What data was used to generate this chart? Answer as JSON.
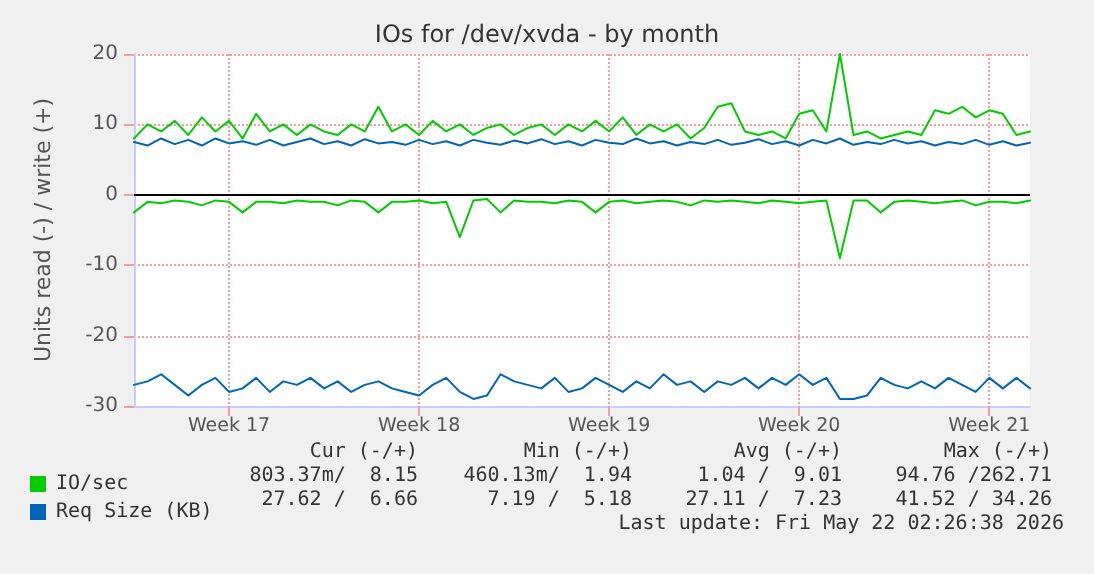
{
  "chart_data": {
    "type": "line",
    "title": "IOs for /dev/xvda - by month",
    "ylabel": "Units read (-) / write (+)",
    "categories": [
      null,
      null,
      null,
      null,
      null,
      null,
      null,
      "Week 17",
      null,
      null,
      null,
      null,
      null,
      null,
      null,
      null,
      null,
      null,
      null,
      null,
      null,
      "Week 18",
      null,
      null,
      null,
      null,
      null,
      null,
      null,
      null,
      null,
      null,
      null,
      null,
      null,
      "Week 19",
      null,
      null,
      null,
      null,
      null,
      null,
      null,
      null,
      null,
      null,
      null,
      null,
      null,
      "Week 20",
      null,
      null,
      null,
      null,
      null,
      null,
      null,
      null,
      null,
      null,
      null,
      null,
      null,
      "Week 21",
      null,
      null,
      null
    ],
    "ylim": [
      -30,
      20
    ],
    "yticks": [
      -30,
      -20,
      -10,
      0,
      10,
      20
    ],
    "grid": true,
    "legend": "bottom left",
    "marker": "none",
    "line_style": "solid",
    "ref_lines": [
      {
        "axis": "y",
        "value": 0,
        "color": "#000000"
      }
    ],
    "series": [
      {
        "name": "IO/sec",
        "color": "#00cc00",
        "values": [
          8,
          10,
          9,
          10.5,
          8.5,
          11,
          9,
          10.5,
          8,
          11.5,
          9,
          10,
          8.5,
          10,
          9,
          8.5,
          10,
          9,
          12.5,
          9,
          10,
          8.5,
          10.5,
          9,
          10,
          8.5,
          9.5,
          10,
          8.5,
          9.5,
          10,
          8.5,
          10,
          9,
          10.5,
          9,
          11,
          8.5,
          10,
          9,
          10,
          8,
          9.5,
          12.5,
          13,
          9,
          8.5,
          9,
          8,
          11.5,
          12,
          9,
          20,
          8.5,
          9,
          8,
          8.5,
          9,
          8.5,
          12,
          11.5,
          12.5,
          11,
          12,
          11.5,
          8.5,
          9
        ]
      },
      {
        "color": "#00cc00",
        "values": [
          -2.5,
          -1,
          -1.2,
          -0.8,
          -1,
          -1.5,
          -0.8,
          -1,
          -2.5,
          -1,
          -1,
          -1.2,
          -0.8,
          -1,
          -1,
          -1.5,
          -0.8,
          -1,
          -2.5,
          -1,
          -1,
          -0.8,
          -1.2,
          -1,
          -6,
          -0.8,
          -0.6,
          -2.5,
          -0.8,
          -1,
          -1,
          -1.2,
          -0.8,
          -1,
          -2.5,
          -1,
          -0.8,
          -1.2,
          -1,
          -0.8,
          -1,
          -1.5,
          -0.8,
          -1,
          -0.8,
          -1,
          -1.2,
          -0.8,
          -1,
          -1.2,
          -1,
          -0.8,
          -9,
          -0.8,
          -0.8,
          -2.5,
          -1,
          -0.8,
          -1,
          -1.2,
          -1,
          -0.8,
          -1.5,
          -1,
          -1,
          -1.2,
          -0.8
        ]
      },
      {
        "name": "Req Size (KB)",
        "color": "#0066b3",
        "values": [
          7.5,
          7,
          8,
          7.2,
          7.8,
          7,
          8,
          7.3,
          7.6,
          7.1,
          7.8,
          7,
          7.5,
          8,
          7.2,
          7.6,
          7,
          7.9,
          7.3,
          7.5,
          7.1,
          7.8,
          7.2,
          7.6,
          7,
          7.8,
          7.4,
          7.1,
          7.7,
          7.3,
          7.9,
          7.2,
          7.6,
          7,
          7.8,
          7.4,
          7.2,
          8,
          7.3,
          7.6,
          7,
          7.5,
          7.2,
          7.8,
          7.1,
          7.4,
          7.9,
          7.2,
          7.6,
          7,
          7.8,
          7.3,
          8,
          7.1,
          7.5,
          7.2,
          7.8,
          7.3,
          7.6,
          7,
          7.5,
          7.2,
          7.8,
          7.1,
          7.6,
          7,
          7.4
        ]
      },
      {
        "color": "#0066b3",
        "values": [
          -27,
          -26.5,
          -25.5,
          -27,
          -28.5,
          -27,
          -26,
          -28,
          -27.5,
          -26,
          -28,
          -26.5,
          -27,
          -26,
          -27.5,
          -26.5,
          -28,
          -27,
          -26.5,
          -27.5,
          -28,
          -28.5,
          -27,
          -26,
          -28,
          -29,
          -28.5,
          -25.5,
          -26.5,
          -27,
          -27.5,
          -26,
          -28,
          -27.5,
          -26,
          -27,
          -28,
          -26.5,
          -27.5,
          -25.5,
          -27,
          -26.5,
          -28,
          -26.5,
          -27,
          -26,
          -27.5,
          -26,
          -27,
          -25.5,
          -27,
          -26,
          -29,
          -29,
          -28.5,
          -26,
          -27,
          -27.5,
          -26.5,
          -27.5,
          -26,
          -27,
          -28,
          -26,
          -27.5,
          -26,
          -27.5
        ]
      }
    ],
    "annotations": [
      "Cur (-/+)",
      "Min (-/+)",
      "Avg (-/+)",
      "Max (-/+)",
      "803.37m/  8.15",
      "460.13m/  1.94",
      "1.04 /  9.01",
      "94.76 /262.71",
      "27.62 /  6.66",
      "7.19 /  5.18",
      "27.11 /  7.23",
      "41.52 / 34.26",
      "Last update: Fri May 22 02:26:38 2026"
    ]
  }
}
